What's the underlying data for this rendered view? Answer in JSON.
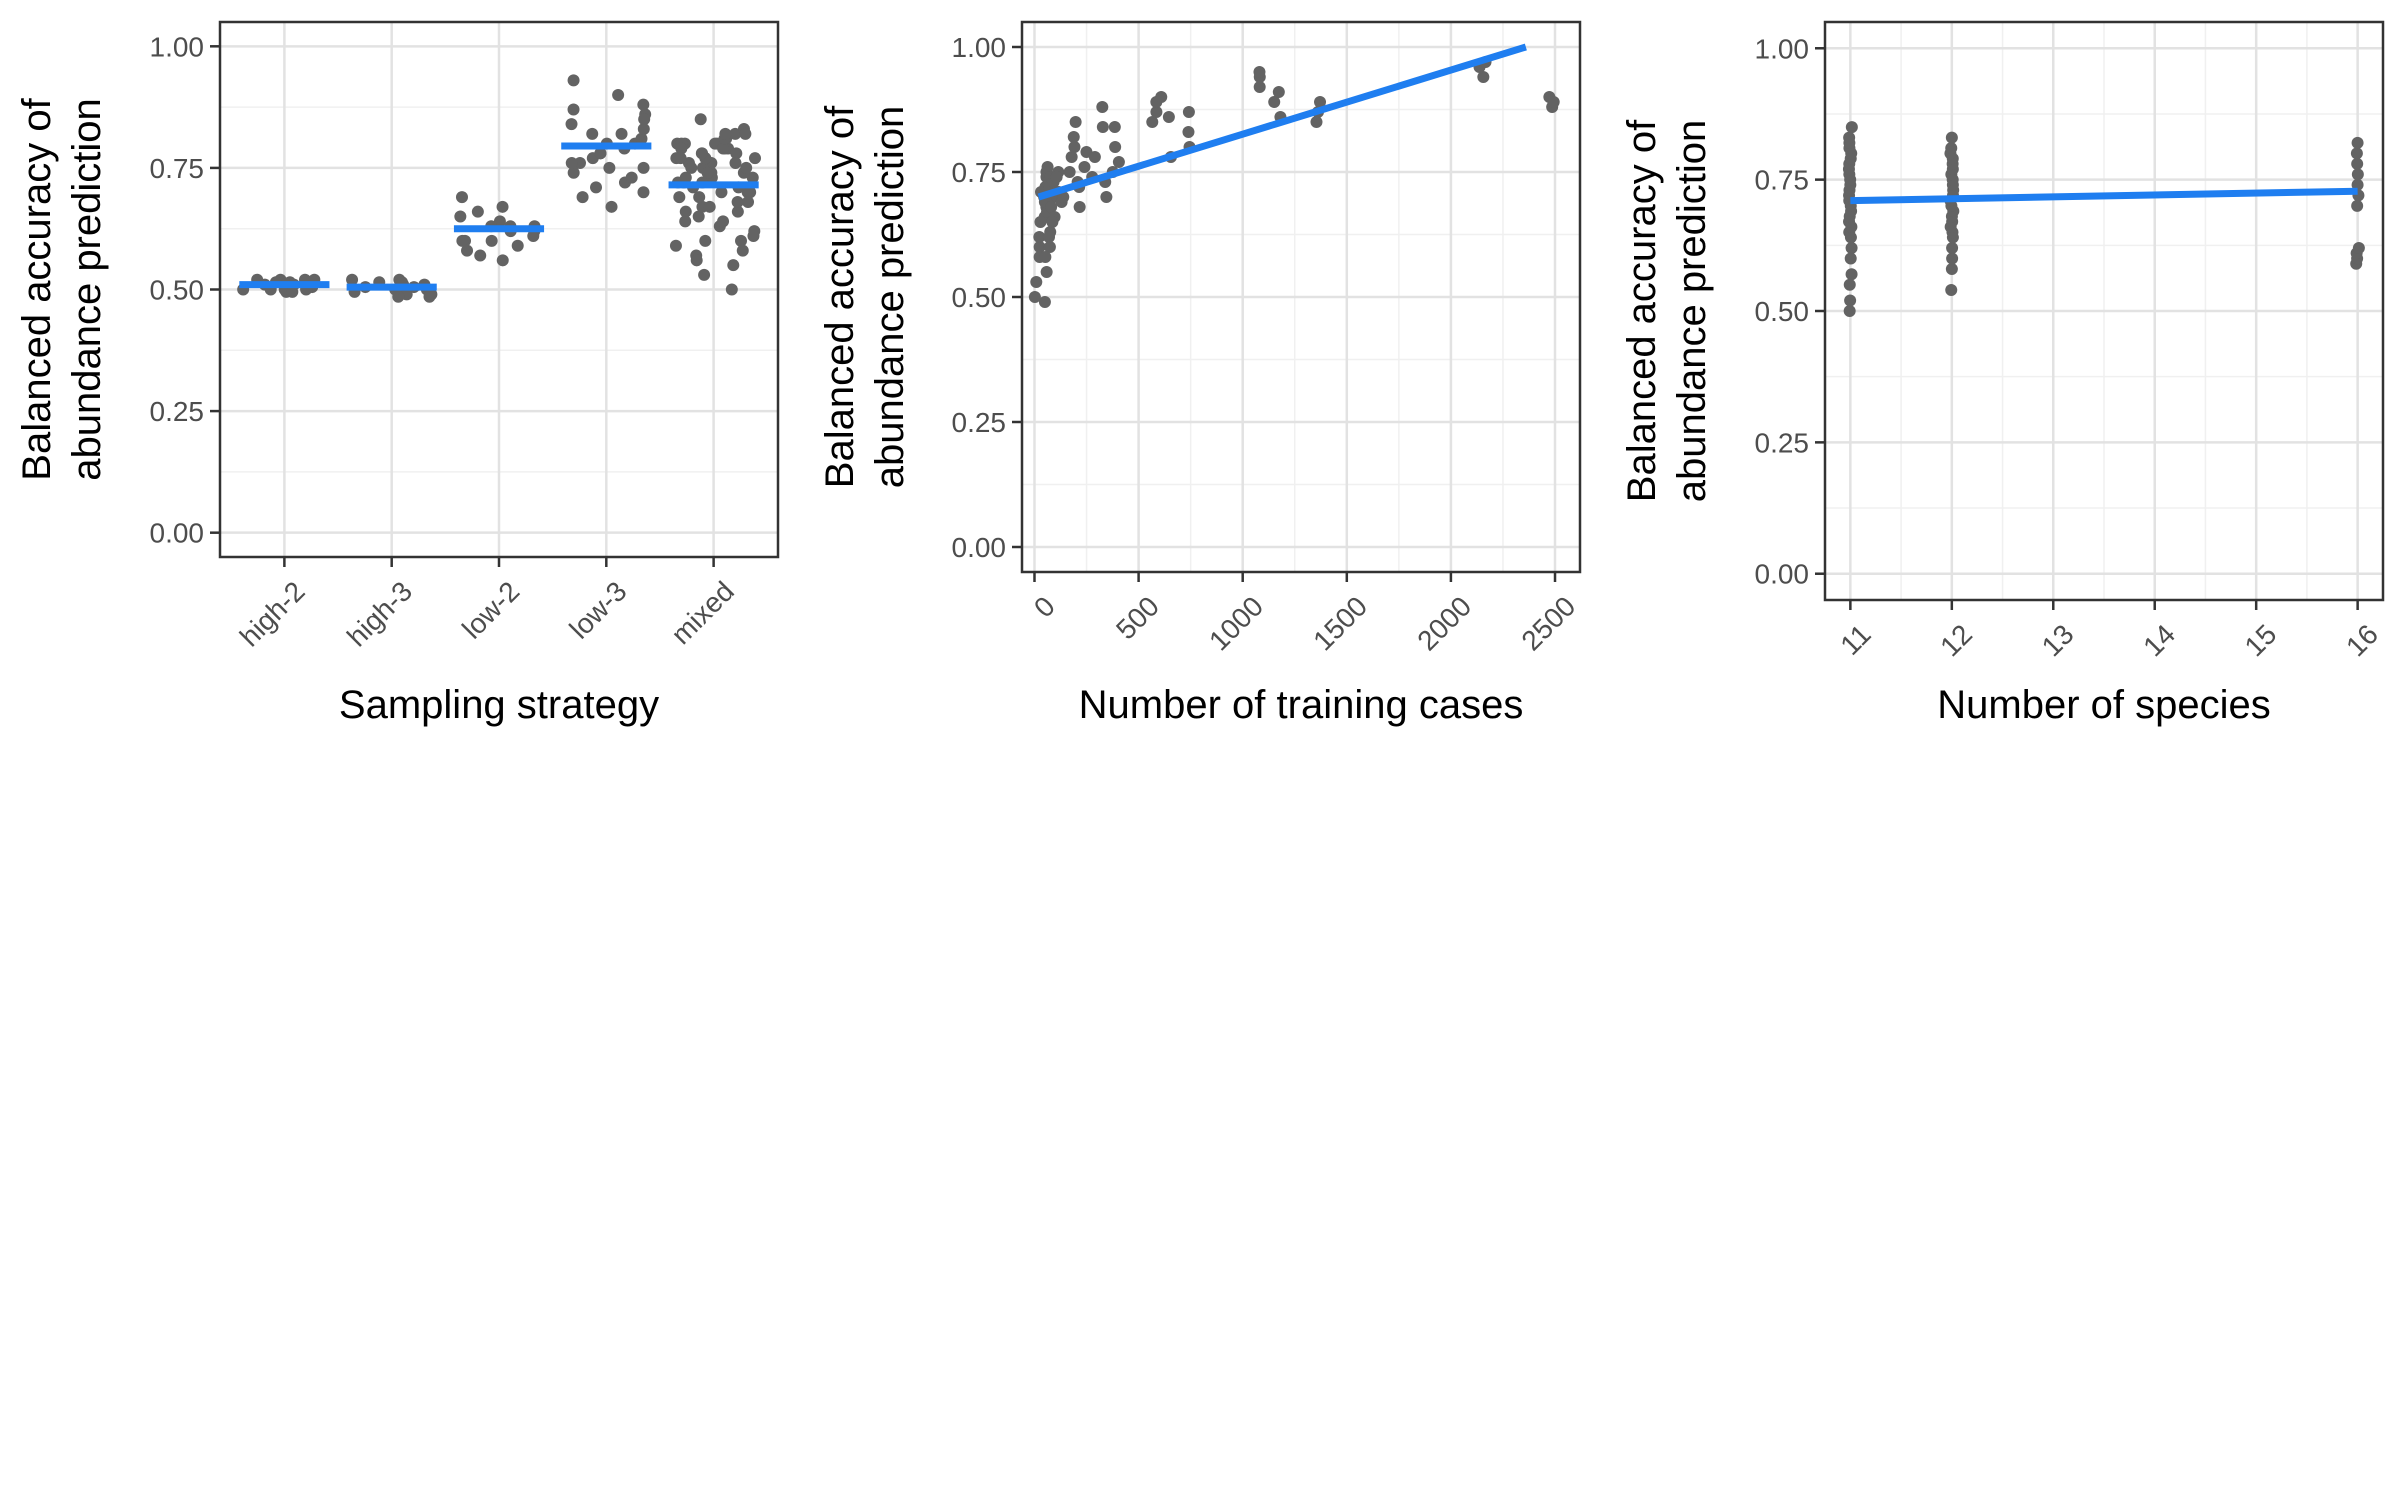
{
  "chart_data": [
    {
      "type": "scatter",
      "xlabel": "Sampling strategy",
      "ylabel_lines": [
        "Balanced accuracy of",
        "abundance prediction"
      ],
      "x_scale": "categorical",
      "categories": [
        "high-2",
        "high-3",
        "low-2",
        "low-3",
        "mixed"
      ],
      "ylim": [
        -0.05,
        1.05
      ],
      "y_ticks": [
        "0.00",
        "0.25",
        "0.50",
        "0.75",
        "1.00"
      ],
      "grid": true,
      "point_color": "#636363",
      "line_color": "#1f7ef0",
      "groups": [
        {
          "category": "high-2",
          "values": [
            0.52,
            0.52,
            0.515,
            0.52,
            0.51,
            0.505,
            0.5,
            0.5,
            0.505,
            0.495,
            0.5,
            0.495,
            0.51,
            0.515,
            0.52,
            0.5
          ],
          "mean": 0.51
        },
        {
          "category": "high-3",
          "values": [
            0.52,
            0.52,
            0.515,
            0.51,
            0.505,
            0.5,
            0.5,
            0.505,
            0.495,
            0.49,
            0.485,
            0.485,
            0.5,
            0.51,
            0.515,
            0.49
          ],
          "mean": 0.505
        },
        {
          "category": "low-2",
          "values": [
            0.63,
            0.64,
            0.62,
            0.59,
            0.6,
            0.57,
            0.61,
            0.62,
            0.63,
            0.6,
            0.58,
            0.69,
            0.65,
            0.66,
            0.67,
            0.56,
            0.6,
            0.63
          ],
          "mean": 0.625
        },
        {
          "category": "low-3",
          "values": [
            0.67,
            0.7,
            0.72,
            0.75,
            0.78,
            0.8,
            0.82,
            0.84,
            0.86,
            0.88,
            0.9,
            0.93,
            0.76,
            0.74,
            0.79,
            0.81,
            0.83,
            0.77,
            0.73,
            0.85,
            0.87,
            0.8,
            0.78,
            0.76,
            0.82,
            0.71,
            0.69,
            0.75
          ],
          "mean": 0.795
        },
        {
          "category": "mixed",
          "values": [
            0.5,
            0.53,
            0.55,
            0.57,
            0.59,
            0.6,
            0.62,
            0.63,
            0.65,
            0.66,
            0.67,
            0.68,
            0.69,
            0.7,
            0.71,
            0.72,
            0.73,
            0.74,
            0.75,
            0.76,
            0.77,
            0.78,
            0.79,
            0.8,
            0.81,
            0.82,
            0.83,
            0.85,
            0.58,
            0.61,
            0.64,
            0.69,
            0.71,
            0.73,
            0.75,
            0.77,
            0.79,
            0.8,
            0.78,
            0.76,
            0.74,
            0.72,
            0.7,
            0.68,
            0.66,
            0.74,
            0.77,
            0.8,
            0.82,
            0.79,
            0.81,
            0.76,
            0.73,
            0.7,
            0.67,
            0.64,
            0.6,
            0.56,
            0.72,
            0.75,
            0.78,
            0.8,
            0.82,
            0.8,
            0.79,
            0.77
          ],
          "mean": 0.715
        }
      ]
    },
    {
      "type": "scatter",
      "xlabel": "Number of training cases",
      "ylabel_lines": [
        "Balanced accuracy of",
        "abundance prediction"
      ],
      "x_scale": "linear",
      "xlim": [
        -60,
        2620
      ],
      "x_ticks": [
        0,
        500,
        1000,
        1500,
        2000,
        2500
      ],
      "ylim": [
        -0.05,
        1.05
      ],
      "y_ticks": [
        "0.00",
        "0.25",
        "0.50",
        "0.75",
        "1.00"
      ],
      "grid": true,
      "point_color": "#636363",
      "line_color": "#1f7ef0",
      "points": [
        {
          "x": 20,
          "y": 0.5
        },
        {
          "x": 25,
          "y": 0.53
        },
        {
          "x": 30,
          "y": 0.6
        },
        {
          "x": 35,
          "y": 0.65
        },
        {
          "x": 40,
          "y": 0.68
        },
        {
          "x": 45,
          "y": 0.7
        },
        {
          "x": 50,
          "y": 0.72
        },
        {
          "x": 55,
          "y": 0.74
        },
        {
          "x": 60,
          "y": 0.76
        },
        {
          "x": 22,
          "y": 0.58
        },
        {
          "x": 28,
          "y": 0.62
        },
        {
          "x": 33,
          "y": 0.66
        },
        {
          "x": 38,
          "y": 0.69
        },
        {
          "x": 43,
          "y": 0.71
        },
        {
          "x": 48,
          "y": 0.75
        },
        {
          "x": 52,
          "y": 0.55
        },
        {
          "x": 58,
          "y": 0.63
        },
        {
          "x": 62,
          "y": 0.67
        },
        {
          "x": 65,
          "y": 0.7
        },
        {
          "x": 70,
          "y": 0.72
        },
        {
          "x": 75,
          "y": 0.74
        },
        {
          "x": 80,
          "y": 0.68
        },
        {
          "x": 85,
          "y": 0.62
        },
        {
          "x": 90,
          "y": 0.6
        },
        {
          "x": 95,
          "y": 0.73
        },
        {
          "x": 100,
          "y": 0.75
        },
        {
          "x": 105,
          "y": 0.7
        },
        {
          "x": 110,
          "y": 0.66
        },
        {
          "x": 115,
          "y": 0.71
        },
        {
          "x": 120,
          "y": 0.69
        },
        {
          "x": 125,
          "y": 0.74
        },
        {
          "x": 45,
          "y": 0.49
        },
        {
          "x": 70,
          "y": 0.58
        },
        {
          "x": 90,
          "y": 0.65
        },
        {
          "x": 150,
          "y": 0.7
        },
        {
          "x": 160,
          "y": 0.75
        },
        {
          "x": 170,
          "y": 0.78
        },
        {
          "x": 180,
          "y": 0.8
        },
        {
          "x": 190,
          "y": 0.82
        },
        {
          "x": 200,
          "y": 0.85
        },
        {
          "x": 210,
          "y": 0.73
        },
        {
          "x": 220,
          "y": 0.68
        },
        {
          "x": 230,
          "y": 0.72
        },
        {
          "x": 240,
          "y": 0.76
        },
        {
          "x": 250,
          "y": 0.79
        },
        {
          "x": 260,
          "y": 0.74
        },
        {
          "x": 300,
          "y": 0.78
        },
        {
          "x": 310,
          "y": 0.84
        },
        {
          "x": 320,
          "y": 0.88
        },
        {
          "x": 330,
          "y": 0.73
        },
        {
          "x": 340,
          "y": 0.7
        },
        {
          "x": 380,
          "y": 0.75
        },
        {
          "x": 390,
          "y": 0.8
        },
        {
          "x": 400,
          "y": 0.84
        },
        {
          "x": 410,
          "y": 0.77
        },
        {
          "x": 560,
          "y": 0.85
        },
        {
          "x": 570,
          "y": 0.87
        },
        {
          "x": 580,
          "y": 0.89
        },
        {
          "x": 620,
          "y": 0.9
        },
        {
          "x": 630,
          "y": 0.86
        },
        {
          "x": 640,
          "y": 0.78
        },
        {
          "x": 730,
          "y": 0.8
        },
        {
          "x": 740,
          "y": 0.83
        },
        {
          "x": 750,
          "y": 0.87
        },
        {
          "x": 1070,
          "y": 0.92
        },
        {
          "x": 1075,
          "y": 0.94
        },
        {
          "x": 1080,
          "y": 0.95
        },
        {
          "x": 1160,
          "y": 0.89
        },
        {
          "x": 1165,
          "y": 0.91
        },
        {
          "x": 1170,
          "y": 0.86
        },
        {
          "x": 1350,
          "y": 0.85
        },
        {
          "x": 1355,
          "y": 0.87
        },
        {
          "x": 1360,
          "y": 0.89
        },
        {
          "x": 2140,
          "y": 0.94
        },
        {
          "x": 2145,
          "y": 0.96
        },
        {
          "x": 2150,
          "y": 0.97
        },
        {
          "x": 2480,
          "y": 0.88
        },
        {
          "x": 2485,
          "y": 0.9
        },
        {
          "x": 2490,
          "y": 0.89
        }
      ],
      "fit_line": {
        "x": [
          20,
          2360
        ],
        "y": [
          0.7,
          1.0
        ]
      }
    },
    {
      "type": "scatter",
      "xlabel": "Number of species",
      "ylabel_lines": [
        "Balanced accuracy of",
        "abundance prediction"
      ],
      "x_scale": "linear",
      "xlim": [
        10.75,
        16.25
      ],
      "x_ticks": [
        11,
        12,
        13,
        14,
        15,
        16
      ],
      "ylim": [
        -0.05,
        1.05
      ],
      "y_ticks": [
        "0.00",
        "0.25",
        "0.50",
        "0.75",
        "1.00"
      ],
      "grid": true,
      "point_color": "#636363",
      "line_color": "#1f7ef0",
      "groups": [
        {
          "x": 11,
          "values": [
            0.5,
            0.52,
            0.55,
            0.57,
            0.6,
            0.62,
            0.64,
            0.65,
            0.66,
            0.67,
            0.68,
            0.69,
            0.7,
            0.71,
            0.72,
            0.73,
            0.74,
            0.75,
            0.76,
            0.77,
            0.78,
            0.79,
            0.8,
            0.81,
            0.82,
            0.83,
            0.85
          ]
        },
        {
          "x": 12,
          "values": [
            0.54,
            0.58,
            0.6,
            0.62,
            0.64,
            0.65,
            0.66,
            0.67,
            0.68,
            0.69,
            0.7,
            0.71,
            0.72,
            0.73,
            0.74,
            0.75,
            0.76,
            0.77,
            0.78,
            0.79,
            0.8,
            0.81,
            0.83
          ]
        },
        {
          "x": 16,
          "values": [
            0.59,
            0.6,
            0.61,
            0.62,
            0.7,
            0.72,
            0.74,
            0.76,
            0.78,
            0.8,
            0.82
          ]
        }
      ],
      "fit_line": {
        "x": [
          11,
          16
        ],
        "y": [
          0.71,
          0.728
        ]
      }
    }
  ]
}
